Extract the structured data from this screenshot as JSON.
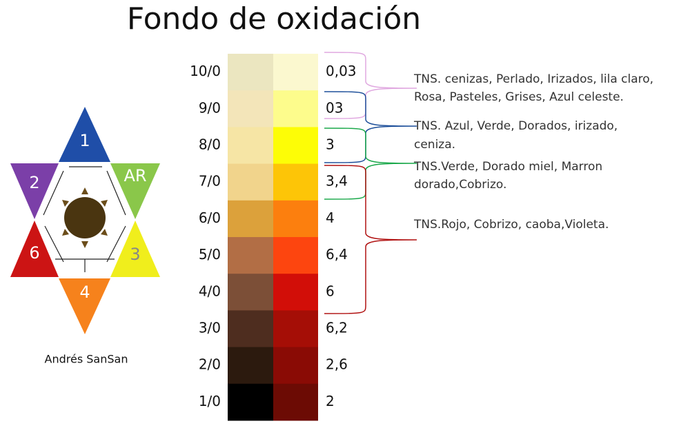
{
  "title": "Fondo de oxidación",
  "star": {
    "labels": [
      "1",
      "2",
      "AR",
      "6",
      "3",
      "4"
    ],
    "author": "Andrés SanSan"
  },
  "rows": [
    {
      "level": "10/0",
      "code": "0,03",
      "base": "#ebe6c0",
      "oxidation": "#fbf8cf"
    },
    {
      "level": "9/0",
      "code": "03",
      "base": "#f3e5b9",
      "oxidation": "#fdfc8c"
    },
    {
      "level": "8/0",
      "code": "3",
      "base": "#f6e5a5",
      "oxidation": "#fdfd06"
    },
    {
      "level": "7/0",
      "code": "3,4",
      "base": "#f1d48c",
      "oxidation": "#fdc507"
    },
    {
      "level": "6/0",
      "code": "4",
      "base": "#dca13b",
      "oxidation": "#fc7f0e"
    },
    {
      "level": "5/0",
      "code": "6,4",
      "base": "#b26e45",
      "oxidation": "#fd450f"
    },
    {
      "level": "4/0",
      "code": "6",
      "base": "#7c4f37",
      "oxidation": "#d20e08"
    },
    {
      "level": "3/0",
      "code": "6,2",
      "base": "#4e2d1f",
      "oxidation": "#a50e06"
    },
    {
      "level": "2/0",
      "code": "2,6",
      "base": "#2c1a0e",
      "oxidation": "#8a0b05"
    },
    {
      "level": "1/0",
      "code": "2",
      "base": "#000000",
      "oxidation": "#6c0b04"
    }
  ],
  "annotations": [
    {
      "lines": [
        "TNS. cenizas, Perlado, Irizados, lila claro,",
        "Rosa, Pasteles, Grises, Azul celeste."
      ]
    },
    {
      "lines": [
        "TNS. Azul, Verde, Dorados, irizado,",
        "ceniza."
      ]
    },
    {
      "lines": [
        "TNS.Verde, Dorado miel, Marron",
        "dorado,Cobrizo."
      ]
    },
    {
      "lines": [
        "TNS.Rojo, Cobrizo, caoba,Violeta."
      ]
    }
  ]
}
